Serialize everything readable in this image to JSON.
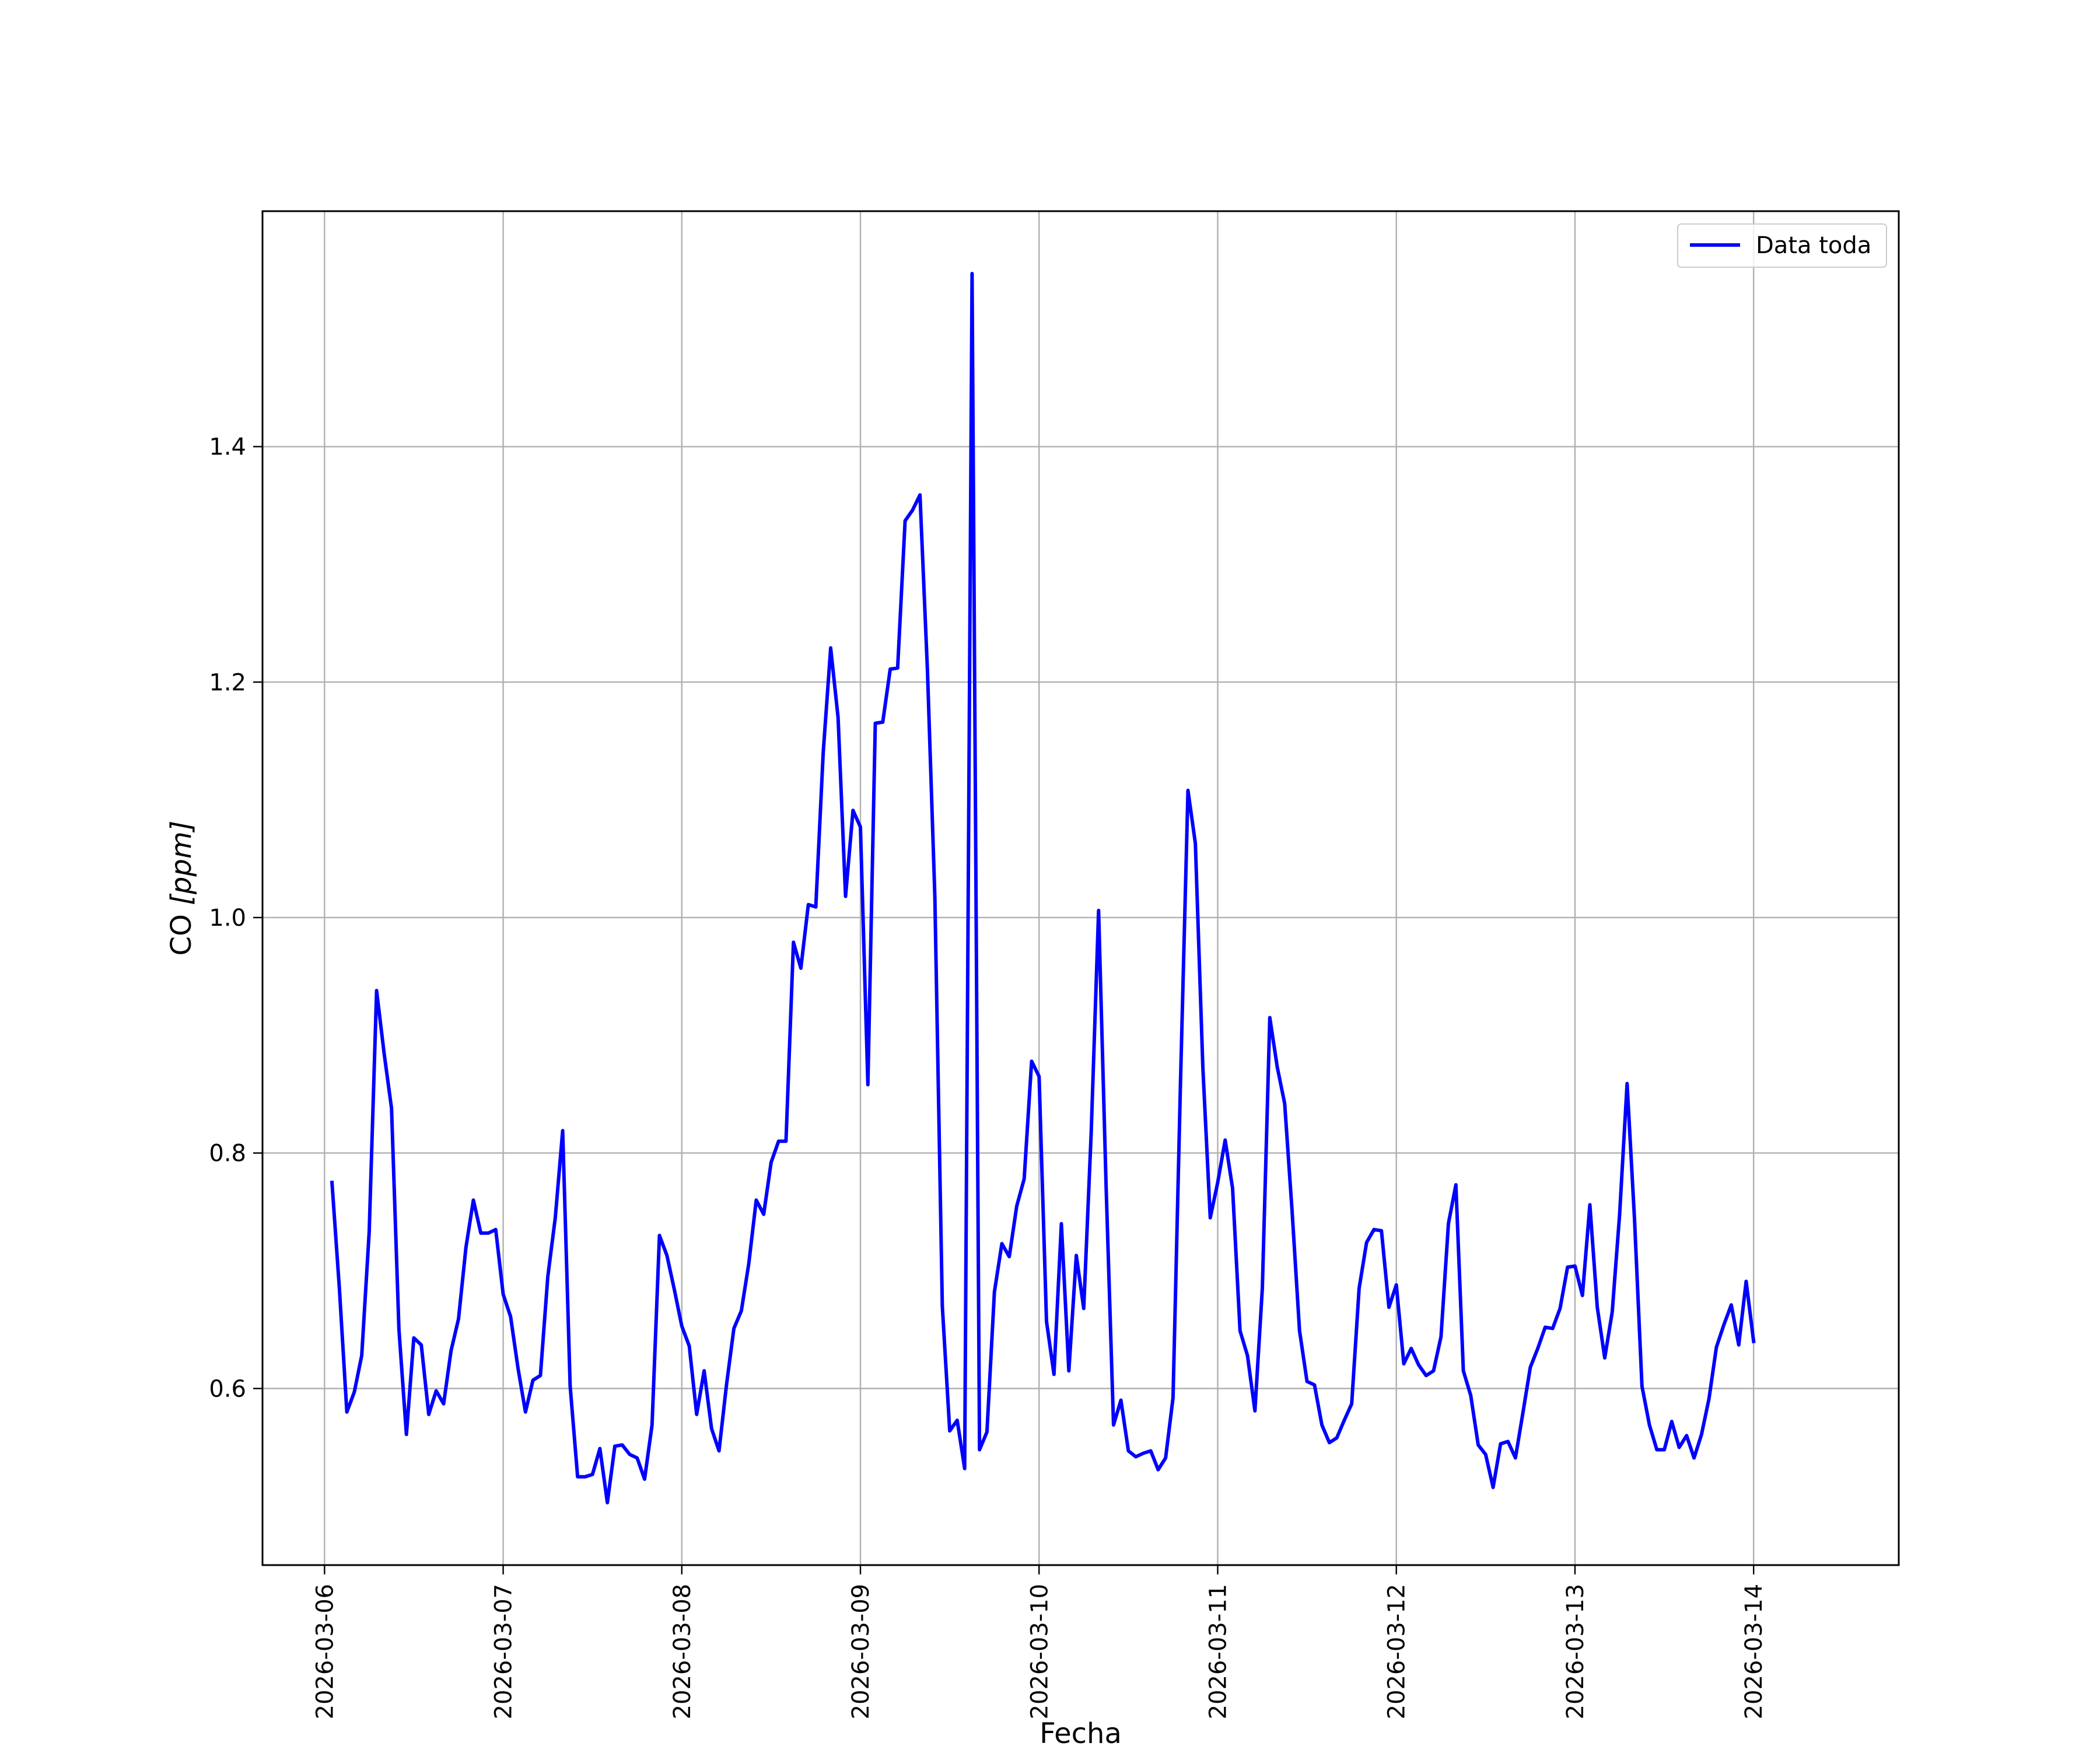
{
  "chart_data": {
    "type": "line",
    "title": "",
    "xlabel": "Fecha",
    "ylabel_main": "CO ",
    "ylabel_unit": "[ppm]",
    "x_type": "datetime",
    "x_ticks": [
      "2026-03-06",
      "2026-03-07",
      "2026-03-08",
      "2026-03-09",
      "2026-03-10",
      "2026-03-11",
      "2026-03-12",
      "2026-03-13",
      "2026-03-14"
    ],
    "y_ticks": [
      "0.6",
      "0.8",
      "1.0",
      "1.2",
      "1.4"
    ],
    "xlim": [
      "2026-03-05 15:40",
      "2026-03-14 19:30"
    ],
    "ylim": [
      0.45,
      1.6
    ],
    "grid": true,
    "legend_position": "upper right",
    "series": [
      {
        "name": "Data toda",
        "color": "#0000ff",
        "x": [
          "2026-03-06 01:00",
          "2026-03-06 02:00",
          "2026-03-06 03:00",
          "2026-03-06 04:00",
          "2026-03-06 05:00",
          "2026-03-06 06:00",
          "2026-03-06 07:00",
          "2026-03-06 08:00",
          "2026-03-06 09:00",
          "2026-03-06 10:00",
          "2026-03-06 11:00",
          "2026-03-06 12:00",
          "2026-03-06 13:00",
          "2026-03-06 14:00",
          "2026-03-06 15:00",
          "2026-03-06 16:00",
          "2026-03-06 17:00",
          "2026-03-06 18:00",
          "2026-03-06 19:00",
          "2026-03-06 20:00",
          "2026-03-06 21:00",
          "2026-03-06 22:00",
          "2026-03-06 23:00",
          "2026-03-07 00:00",
          "2026-03-07 01:00",
          "2026-03-07 02:00",
          "2026-03-07 03:00",
          "2026-03-07 04:00",
          "2026-03-07 05:00",
          "2026-03-07 06:00",
          "2026-03-07 07:00",
          "2026-03-07 08:00",
          "2026-03-07 09:00",
          "2026-03-07 10:00",
          "2026-03-07 11:00",
          "2026-03-07 12:00",
          "2026-03-07 13:00",
          "2026-03-07 14:00",
          "2026-03-07 15:00",
          "2026-03-07 16:00",
          "2026-03-07 17:00",
          "2026-03-07 18:00",
          "2026-03-07 19:00",
          "2026-03-07 20:00",
          "2026-03-07 21:00",
          "2026-03-07 22:00",
          "2026-03-07 23:00",
          "2026-03-08 00:00",
          "2026-03-08 01:00",
          "2026-03-08 02:00",
          "2026-03-08 03:00",
          "2026-03-08 04:00",
          "2026-03-08 05:00",
          "2026-03-08 06:00",
          "2026-03-08 07:00",
          "2026-03-08 08:00",
          "2026-03-08 09:00",
          "2026-03-08 10:00",
          "2026-03-08 11:00",
          "2026-03-08 12:00",
          "2026-03-08 13:00",
          "2026-03-08 14:00",
          "2026-03-08 15:00",
          "2026-03-08 16:00",
          "2026-03-08 17:00",
          "2026-03-08 18:00",
          "2026-03-08 19:00",
          "2026-03-08 20:00",
          "2026-03-08 21:00",
          "2026-03-08 22:00",
          "2026-03-08 23:00",
          "2026-03-09 00:00",
          "2026-03-09 01:00",
          "2026-03-09 02:00",
          "2026-03-09 03:00",
          "2026-03-09 04:00",
          "2026-03-09 05:00",
          "2026-03-09 06:00",
          "2026-03-09 07:00",
          "2026-03-09 08:00",
          "2026-03-09 09:00",
          "2026-03-09 10:00",
          "2026-03-09 11:00",
          "2026-03-09 12:00",
          "2026-03-09 13:00",
          "2026-03-09 14:00",
          "2026-03-09 15:00",
          "2026-03-09 16:00",
          "2026-03-09 17:00",
          "2026-03-09 18:00",
          "2026-03-09 19:00",
          "2026-03-09 20:00",
          "2026-03-09 21:00",
          "2026-03-09 22:00",
          "2026-03-09 23:00",
          "2026-03-10 00:00",
          "2026-03-10 01:00",
          "2026-03-10 02:00",
          "2026-03-10 03:00",
          "2026-03-10 04:00",
          "2026-03-10 05:00",
          "2026-03-10 06:00",
          "2026-03-10 07:00",
          "2026-03-10 08:00",
          "2026-03-10 09:00",
          "2026-03-10 10:00",
          "2026-03-10 11:00",
          "2026-03-10 12:00",
          "2026-03-10 13:00",
          "2026-03-10 14:00",
          "2026-03-10 15:00",
          "2026-03-10 16:00",
          "2026-03-10 17:00",
          "2026-03-10 18:00",
          "2026-03-10 19:00",
          "2026-03-10 20:00",
          "2026-03-10 21:00",
          "2026-03-10 22:00",
          "2026-03-10 23:00",
          "2026-03-11 00:00",
          "2026-03-11 01:00",
          "2026-03-11 02:00",
          "2026-03-11 03:00",
          "2026-03-11 04:00",
          "2026-03-11 05:00",
          "2026-03-11 06:00",
          "2026-03-11 07:00",
          "2026-03-11 08:00",
          "2026-03-11 09:00",
          "2026-03-11 10:00",
          "2026-03-11 11:00",
          "2026-03-11 12:00",
          "2026-03-11 13:00",
          "2026-03-11 14:00",
          "2026-03-11 15:00",
          "2026-03-11 16:00",
          "2026-03-11 17:00",
          "2026-03-11 18:00",
          "2026-03-11 19:00",
          "2026-03-11 20:00",
          "2026-03-11 21:00",
          "2026-03-11 22:00",
          "2026-03-11 23:00",
          "2026-03-12 00:00",
          "2026-03-12 01:00",
          "2026-03-12 02:00",
          "2026-03-12 03:00",
          "2026-03-12 04:00",
          "2026-03-12 05:00",
          "2026-03-12 06:00",
          "2026-03-12 07:00",
          "2026-03-12 08:00",
          "2026-03-12 09:00",
          "2026-03-12 10:00",
          "2026-03-12 11:00",
          "2026-03-12 12:00",
          "2026-03-12 13:00",
          "2026-03-12 14:00",
          "2026-03-12 15:00",
          "2026-03-12 16:00",
          "2026-03-12 17:00",
          "2026-03-12 18:00",
          "2026-03-12 19:00",
          "2026-03-12 20:00",
          "2026-03-12 21:00",
          "2026-03-12 22:00",
          "2026-03-12 23:00",
          "2026-03-13 00:00",
          "2026-03-13 01:00",
          "2026-03-13 02:00",
          "2026-03-13 03:00",
          "2026-03-13 04:00",
          "2026-03-13 05:00",
          "2026-03-13 06:00",
          "2026-03-13 07:00",
          "2026-03-13 08:00",
          "2026-03-13 09:00",
          "2026-03-13 10:00",
          "2026-03-13 11:00",
          "2026-03-13 12:00",
          "2026-03-13 13:00",
          "2026-03-13 14:00",
          "2026-03-13 15:00",
          "2026-03-13 16:00",
          "2026-03-13 17:00",
          "2026-03-13 18:00",
          "2026-03-13 19:00",
          "2026-03-13 20:00",
          "2026-03-13 21:00",
          "2026-03-13 22:00",
          "2026-03-13 23:00",
          "2026-03-14 00:00"
        ],
        "y": [
          0.775,
          0.685,
          0.58,
          0.597,
          0.628,
          0.733,
          0.938,
          0.885,
          0.838,
          0.65,
          0.561,
          0.643,
          0.637,
          0.578,
          0.598,
          0.587,
          0.632,
          0.659,
          0.72,
          0.76,
          0.732,
          0.732,
          0.735,
          0.68,
          0.661,
          0.617,
          0.58,
          0.607,
          0.611,
          0.695,
          0.745,
          0.819,
          0.602,
          0.525,
          0.525,
          0.527,
          0.549,
          0.503,
          0.551,
          0.552,
          0.544,
          0.541,
          0.523,
          0.569,
          0.73,
          0.713,
          0.684,
          0.653,
          0.636,
          0.578,
          0.615,
          0.566,
          0.547,
          0.603,
          0.651,
          0.666,
          0.706,
          0.76,
          0.748,
          0.792,
          0.81,
          0.81,
          0.979,
          0.957,
          1.011,
          1.009,
          1.14,
          1.229,
          1.17,
          1.018,
          1.091,
          1.077,
          0.858,
          1.165,
          1.166,
          1.211,
          1.212,
          1.337,
          1.346,
          1.359,
          1.21,
          1.018,
          0.67,
          0.564,
          0.573,
          0.532,
          1.547,
          0.548,
          0.563,
          0.682,
          0.723,
          0.712,
          0.755,
          0.778,
          0.878,
          0.865,
          0.657,
          0.612,
          0.74,
          0.615,
          0.713,
          0.668,
          0.817,
          1.006,
          0.773,
          0.569,
          0.59,
          0.547,
          0.542,
          0.545,
          0.547,
          0.531,
          0.541,
          0.592,
          0.86,
          1.108,
          1.063,
          0.873,
          0.745,
          0.775,
          0.811,
          0.77,
          0.649,
          0.628,
          0.581,
          0.685,
          0.915,
          0.873,
          0.842,
          0.75,
          0.649,
          0.606,
          0.603,
          0.569,
          0.554,
          0.558,
          0.573,
          0.587,
          0.685,
          0.724,
          0.735,
          0.734,
          0.669,
          0.688,
          0.621,
          0.634,
          0.62,
          0.611,
          0.615,
          0.644,
          0.74,
          0.773,
          0.615,
          0.594,
          0.552,
          0.544,
          0.516,
          0.553,
          0.555,
          0.541,
          0.579,
          0.618,
          0.634,
          0.652,
          0.651,
          0.668,
          0.703,
          0.704,
          0.679,
          0.756,
          0.669,
          0.626,
          0.665,
          0.748,
          0.859,
          0.744,
          0.602,
          0.569,
          0.548,
          0.548,
          0.572,
          0.55,
          0.56,
          0.541,
          0.561,
          0.591,
          0.635,
          0.654,
          0.671,
          0.637,
          0.691,
          0.64
        ]
      }
    ]
  }
}
